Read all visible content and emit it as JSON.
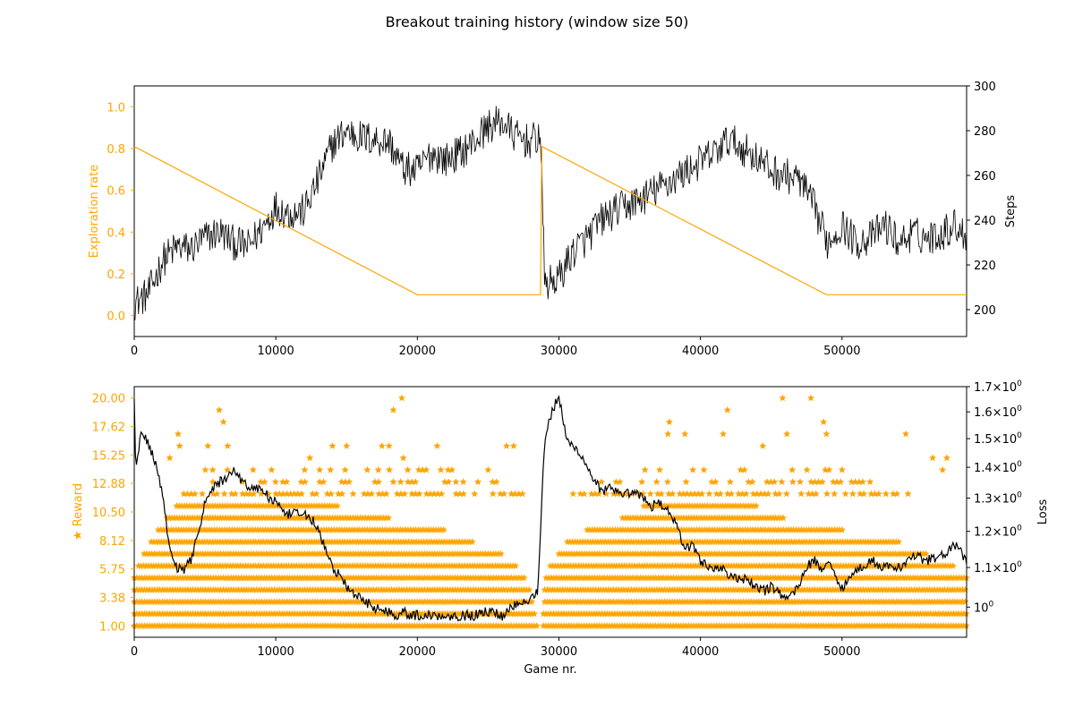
{
  "figure": {
    "title": "Breakout training history (window size 50)"
  },
  "colors": {
    "accent": "#FFA500",
    "line": "#000000",
    "axis": "#000000",
    "background": "#FFFFFF"
  },
  "chart_data": [
    {
      "type": "line",
      "title": "",
      "xlabel": "",
      "ylabel": "Exploration rate",
      "y2label": "Steps",
      "xlim": [
        0,
        58800
      ],
      "ylim": [
        -0.1,
        1.1
      ],
      "y2lim": [
        188,
        300
      ],
      "x_ticks": [
        0,
        10000,
        20000,
        30000,
        40000,
        50000
      ],
      "y_ticks": [
        0.0,
        0.2,
        0.4,
        0.6,
        0.8,
        1.0
      ],
      "y_tick_labels": [
        "0.0",
        "0.2",
        "0.4",
        "0.6",
        "0.8",
        "1.0"
      ],
      "y2_ticks": [
        200,
        220,
        240,
        260,
        280,
        300
      ],
      "grid": false,
      "series": [
        {
          "axis": "left",
          "color": "#FFA500",
          "x": [
            0,
            20000,
            28700,
            28700,
            28800,
            48900,
            58800
          ],
          "y": [
            0.81,
            0.1,
            0.1,
            0.1,
            0.81,
            0.1,
            0.1
          ]
        },
        {
          "axis": "right",
          "color": "#000000",
          "x": [
            0,
            1000,
            2000,
            3000,
            4000,
            5000,
            6000,
            7000,
            8000,
            9000,
            10000,
            11000,
            12000,
            13000,
            14000,
            15000,
            16000,
            17000,
            18000,
            19000,
            20000,
            21000,
            22000,
            23000,
            24000,
            25000,
            26000,
            27000,
            28000,
            28700,
            29000,
            30000,
            31000,
            32000,
            33000,
            34000,
            35000,
            36000,
            37000,
            38000,
            39000,
            40000,
            41000,
            42000,
            43000,
            44000,
            45000,
            46000,
            47000,
            48000,
            49000,
            50000,
            51000,
            52000,
            53000,
            54000,
            55000,
            56000,
            57000,
            58000,
            58800
          ],
          "y": [
            203,
            207,
            222,
            228,
            227,
            232,
            235,
            230,
            228,
            236,
            246,
            243,
            244,
            258,
            274,
            280,
            277,
            276,
            275,
            263,
            262,
            270,
            267,
            270,
            275,
            282,
            284,
            277,
            275,
            278,
            211,
            214,
            226,
            232,
            240,
            244,
            247,
            250,
            254,
            258,
            262,
            266,
            270,
            276,
            272,
            268,
            262,
            260,
            258,
            246,
            230,
            238,
            230,
            232,
            238,
            230,
            234,
            232,
            234,
            238,
            233
          ]
        }
      ]
    },
    {
      "type": "scatter",
      "title": "",
      "xlabel": "Game nr.",
      "ylabel": "★ Reward",
      "y2label": "Loss",
      "xlim": [
        0,
        58800
      ],
      "ylim": [
        0.05,
        20.95
      ],
      "y2lim": [
        0.93,
        1.7
      ],
      "y2scale": "log",
      "x_ticks": [
        0,
        10000,
        20000,
        30000,
        40000,
        50000
      ],
      "y_ticks": [
        1.0,
        3.38,
        5.75,
        8.12,
        10.5,
        12.88,
        15.25,
        17.62,
        20.0
      ],
      "y_tick_labels": [
        "1.00",
        "3.38",
        "5.75",
        "8.12",
        "10.50",
        "12.88",
        "15.25",
        "17.62",
        "20.00"
      ],
      "y2_ticks": [
        1.0,
        1.1,
        1.2,
        1.3,
        1.4,
        1.5,
        1.6,
        1.7
      ],
      "y2_tick_labels": [
        "10^0",
        "1.1×10^0",
        "1.2×10^0",
        "1.3×10^0",
        "1.4×10^0",
        "1.5×10^0",
        "1.6×10^0",
        "1.7×10^0"
      ],
      "grid": false,
      "series": [
        {
          "axis": "left",
          "marker": "star",
          "color": "#FFA500",
          "reward_values": [
            1,
            2,
            3,
            4,
            5,
            6,
            7,
            8,
            9,
            10,
            11,
            12,
            13,
            14,
            15,
            16,
            17,
            18,
            19,
            20
          ],
          "coverage": [
            {
              "value": 1,
              "x_ranges": [
                [
                  0,
                  28500
                ],
                [
                  28900,
                  58800
                ]
              ]
            },
            {
              "value": 2,
              "x_ranges": [
                [
                  0,
                  28300
                ],
                [
                  28900,
                  58800
                ]
              ]
            },
            {
              "value": 3,
              "x_ranges": [
                [
                  0,
                  28200
                ],
                [
                  29000,
                  58800
                ]
              ]
            },
            {
              "value": 4,
              "x_ranges": [
                [
                  0,
                  28000
                ],
                [
                  29000,
                  58800
                ]
              ]
            },
            {
              "value": 5,
              "x_ranges": [
                [
                  0,
                  27600
                ],
                [
                  29100,
                  58800
                ]
              ]
            },
            {
              "value": 6,
              "x_ranges": [
                [
                  300,
                  27000
                ],
                [
                  29400,
                  58000
                ]
              ]
            },
            {
              "value": 7,
              "x_ranges": [
                [
                  700,
                  26000
                ],
                [
                  30000,
                  56000
                ]
              ]
            },
            {
              "value": 8,
              "x_ranges": [
                [
                  1200,
                  24000
                ],
                [
                  30600,
                  54000
                ]
              ]
            },
            {
              "value": 9,
              "x_ranges": [
                [
                  1700,
                  22000
                ],
                [
                  32000,
                  50000
                ]
              ]
            },
            {
              "value": 10,
              "x_ranges": [
                [
                  2300,
                  18000
                ],
                [
                  34500,
                  46000
                ]
              ]
            },
            {
              "value": 11,
              "x_ranges": [
                [
                  3000,
                  14500
                ],
                [
                  36000,
                  44000
                ]
              ]
            }
          ],
          "outliers": [
            {
              "x": 6000,
              "y": 19
            },
            {
              "x": 6300,
              "y": 18
            },
            {
              "x": 3100,
              "y": 17
            },
            {
              "x": 3200,
              "y": 16
            },
            {
              "x": 5200,
              "y": 16
            },
            {
              "x": 6600,
              "y": 16
            },
            {
              "x": 2500,
              "y": 15
            },
            {
              "x": 12400,
              "y": 15
            },
            {
              "x": 14000,
              "y": 16
            },
            {
              "x": 15000,
              "y": 16
            },
            {
              "x": 17500,
              "y": 16
            },
            {
              "x": 18000,
              "y": 16
            },
            {
              "x": 18300,
              "y": 19
            },
            {
              "x": 18900,
              "y": 20
            },
            {
              "x": 21400,
              "y": 16
            },
            {
              "x": 26300,
              "y": 16
            },
            {
              "x": 26800,
              "y": 16
            },
            {
              "x": 19000,
              "y": 15
            },
            {
              "x": 13100,
              "y": 14
            },
            {
              "x": 25000,
              "y": 14
            },
            {
              "x": 37800,
              "y": 18
            },
            {
              "x": 37700,
              "y": 17
            },
            {
              "x": 38900,
              "y": 17
            },
            {
              "x": 41600,
              "y": 17
            },
            {
              "x": 41900,
              "y": 19
            },
            {
              "x": 44400,
              "y": 16
            },
            {
              "x": 46100,
              "y": 17
            },
            {
              "x": 45800,
              "y": 20
            },
            {
              "x": 47800,
              "y": 20
            },
            {
              "x": 48700,
              "y": 18
            },
            {
              "x": 48900,
              "y": 17
            },
            {
              "x": 54500,
              "y": 17
            },
            {
              "x": 56400,
              "y": 15
            },
            {
              "x": 57400,
              "y": 15
            },
            {
              "x": 57100,
              "y": 14
            },
            {
              "x": 50000,
              "y": 14
            }
          ]
        },
        {
          "axis": "right",
          "color": "#000000",
          "x": [
            0,
            100,
            500,
            1000,
            1500,
            2000,
            2500,
            3000,
            3500,
            4000,
            4500,
            5000,
            5500,
            6000,
            6500,
            7000,
            7500,
            8000,
            8500,
            9000,
            9500,
            10000,
            10500,
            11000,
            11500,
            12000,
            12500,
            13000,
            13500,
            14000,
            14500,
            15000,
            15500,
            16000,
            16500,
            17000,
            17500,
            18000,
            18500,
            19000,
            19500,
            20000,
            21000,
            22000,
            23000,
            24000,
            25000,
            26000,
            27000,
            28000,
            28500,
            28700,
            29000,
            29500,
            30000,
            30500,
            31000,
            31500,
            32000,
            32500,
            33000,
            33500,
            34000,
            34500,
            35000,
            35500,
            36000,
            36500,
            37000,
            37500,
            38000,
            38500,
            39000,
            39500,
            40000,
            40500,
            41000,
            41500,
            42000,
            42500,
            43000,
            43500,
            44000,
            44500,
            45000,
            45500,
            46000,
            46500,
            47000,
            47500,
            48000,
            48500,
            49000,
            49500,
            50000,
            51000,
            52000,
            53000,
            54000,
            55000,
            56000,
            57000,
            58000,
            58800
          ],
          "y": [
            1.66,
            1.4,
            1.52,
            1.48,
            1.42,
            1.3,
            1.15,
            1.1,
            1.09,
            1.12,
            1.2,
            1.28,
            1.33,
            1.35,
            1.36,
            1.4,
            1.36,
            1.34,
            1.33,
            1.33,
            1.3,
            1.29,
            1.25,
            1.25,
            1.25,
            1.25,
            1.24,
            1.2,
            1.15,
            1.1,
            1.08,
            1.05,
            1.03,
            1.02,
            1.01,
            1.0,
            0.99,
            0.99,
            0.98,
            0.99,
            0.98,
            0.98,
            0.98,
            0.98,
            0.98,
            0.98,
            0.99,
            0.98,
            1.01,
            1.02,
            1.04,
            1.2,
            1.5,
            1.6,
            1.66,
            1.5,
            1.47,
            1.45,
            1.4,
            1.36,
            1.32,
            1.33,
            1.32,
            1.3,
            1.32,
            1.31,
            1.3,
            1.27,
            1.29,
            1.27,
            1.25,
            1.19,
            1.15,
            1.16,
            1.12,
            1.1,
            1.1,
            1.1,
            1.08,
            1.07,
            1.07,
            1.06,
            1.05,
            1.04,
            1.05,
            1.04,
            1.02,
            1.03,
            1.06,
            1.1,
            1.12,
            1.1,
            1.11,
            1.08,
            1.05,
            1.09,
            1.12,
            1.1,
            1.1,
            1.13,
            1.12,
            1.13,
            1.16,
            1.12
          ]
        }
      ]
    }
  ]
}
